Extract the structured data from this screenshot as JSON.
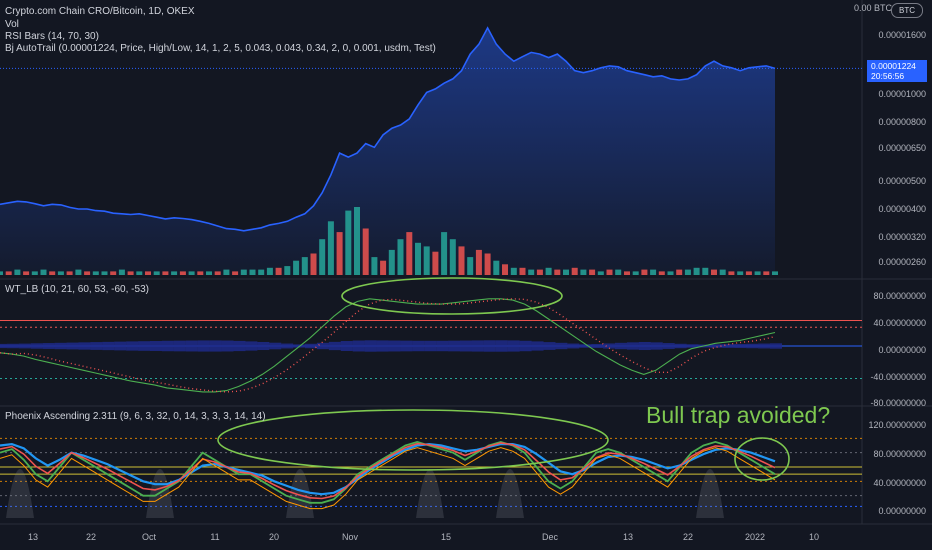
{
  "header": {
    "symbol_line": "Crypto.com Chain CRO/Bitcoin, 1D, OKEX",
    "vol_label": "Vol",
    "rsi_bars": "RSI Bars (14, 70, 30)",
    "autotrail": "Bj AutoTrail (0.00001224, Price, High/Low, 14, 1, 2, 5, 0.043, 0.043, 0.34, 2, 0, 0.001, usdm, Test)"
  },
  "wt_legend": "WT_LB (10, 21, 60, 53, -60, -53)",
  "phoenix_legend": "Phoenix Ascending 2.311 (9, 6, 3, 32, 0, 14, 3, 3, 3, 14, 14)",
  "annotation": "Bull trap avoided?",
  "currency_badge": "BTC",
  "price_tag": {
    "value": "0.00001224",
    "countdown": "20:56:56"
  },
  "price_axis": [
    "0.00 BTC",
    "0.00001600",
    "0.00001000",
    "0.00000800",
    "0.00000650",
    "0.00000500",
    "0.00000400",
    "0.00000320",
    "0.00000260"
  ],
  "wt_axis": [
    "80.00000000",
    "40.00000000",
    "0.00000000",
    "-40.00000000",
    "-80.00000000"
  ],
  "phoenix_axis": [
    "120.00000000",
    "80.00000000",
    "40.00000000",
    "0.00000000"
  ],
  "time_axis": [
    "13",
    "22",
    "Oct",
    "11",
    "20",
    "Nov",
    "15",
    "Dec",
    "13",
    "22",
    "2022",
    "10"
  ],
  "colors": {
    "background": "#131722",
    "price_line": "#2962ff",
    "volume_up": "#26a69a",
    "volume_down": "#ef5350",
    "annotation": "#7ec850"
  },
  "chart_data": [
    {
      "type": "area",
      "title": "Crypto.com Chain CRO/Bitcoin, 1D, OKEX",
      "scale": "log",
      "y_unit": "BTC",
      "last_price": 1.224e-05,
      "close": [
        3.9e-06,
        3.95e-06,
        4e-06,
        3.98e-06,
        3.92e-06,
        3.85e-06,
        3.9e-06,
        3.88e-06,
        3.8e-06,
        3.75e-06,
        3.75e-06,
        3.7e-06,
        3.68e-06,
        3.62e-06,
        3.6e-06,
        3.58e-06,
        3.6e-06,
        3.55e-06,
        3.5e-06,
        3.45e-06,
        3.48e-06,
        3.46e-06,
        3.43e-06,
        3.38e-06,
        3.32e-06,
        3.25e-06,
        3.18e-06,
        3.16e-06,
        3.12e-06,
        3.16e-06,
        3.2e-06,
        3.28e-06,
        3.32e-06,
        3.38e-06,
        3.5e-06,
        3.6e-06,
        3.85e-06,
        4.3e-06,
        5e-06,
        6e-06,
        5.8e-06,
        6e-06,
        6.5e-06,
        6.3e-06,
        7e-06,
        7.4e-06,
        7.6e-06,
        8e-06,
        9e-06,
        1e-05,
        1.03e-05,
        1.08e-05,
        1.12e-05,
        1.2e-05,
        1.38e-05,
        1.5e-05,
        1.72e-05,
        1.5e-05,
        1.38e-05,
        1.3e-05,
        1.35e-05,
        1.4e-05,
        1.38e-05,
        1.34e-05,
        1.38e-05,
        1.3e-05,
        1.2e-05,
        1.18e-05,
        1.2e-05,
        1.23e-05,
        1.25e-05,
        1.24e-05,
        1.2e-05,
        1.18e-05,
        1.16e-05,
        1.14e-05,
        1.15e-05,
        1.12e-05,
        1.11e-05,
        1.12e-05,
        1.16e-05,
        1.25e-05,
        1.3e-05,
        1.25e-05,
        1.23e-05,
        1.2e-05,
        1.23e-05,
        1.24e-05,
        1.25e-05,
        1.224e-05
      ],
      "volume": [
        2,
        2,
        3,
        2,
        2,
        3,
        2,
        2,
        2,
        3,
        2,
        2,
        2,
        2,
        3,
        2,
        2,
        2,
        2,
        2,
        2,
        2,
        2,
        2,
        2,
        2,
        3,
        2,
        3,
        3,
        3,
        4,
        4,
        5,
        8,
        10,
        12,
        20,
        30,
        24,
        36,
        38,
        26,
        10,
        8,
        14,
        20,
        24,
        18,
        16,
        13,
        24,
        20,
        16,
        10,
        14,
        12,
        8,
        6,
        4,
        4,
        3,
        3,
        4,
        3,
        3,
        4,
        3,
        3,
        2,
        3,
        3,
        2,
        2,
        3,
        3,
        2,
        2,
        3,
        3,
        4,
        4,
        3,
        3,
        2,
        2,
        2,
        2,
        2,
        2
      ],
      "volume_direction": [
        "up",
        "down",
        "up",
        "down",
        "up",
        "up",
        "down",
        "up",
        "down",
        "up",
        "down",
        "up",
        "up",
        "down",
        "up",
        "down",
        "up",
        "down",
        "up",
        "down",
        "up",
        "down",
        "up",
        "down",
        "up",
        "down",
        "up",
        "down",
        "up",
        "up",
        "up",
        "up",
        "down",
        "up",
        "up",
        "up",
        "down",
        "up",
        "up",
        "down",
        "up",
        "up",
        "down",
        "up",
        "down",
        "up",
        "up",
        "down",
        "up",
        "up",
        "down",
        "up",
        "up",
        "down",
        "up",
        "down",
        "down",
        "up",
        "down",
        "up",
        "down",
        "up",
        "down",
        "up",
        "down",
        "up",
        "down",
        "up",
        "down",
        "up",
        "down",
        "up",
        "down",
        "up",
        "down",
        "up",
        "down",
        "up",
        "down",
        "up",
        "up",
        "up",
        "down",
        "up",
        "down",
        "up",
        "down",
        "up",
        "down",
        "up"
      ]
    },
    {
      "type": "line",
      "title": "WT_LB (10, 21, 60, 53, -60, -53)",
      "ylim": [
        -80,
        80
      ],
      "overbought": [
        60,
        53
      ],
      "oversold": [
        -60,
        -53
      ],
      "wt1": [
        -10,
        -12,
        -15,
        -20,
        -24,
        -28,
        -32,
        -36,
        -40,
        -44,
        -48,
        -52,
        -55,
        -58,
        -62,
        -64,
        -66,
        -68,
        -68,
        -66,
        -60,
        -52,
        -42,
        -30,
        -16,
        -2,
        12,
        28,
        44,
        58,
        66,
        70,
        68,
        66,
        64,
        62,
        62,
        62,
        64,
        66,
        68,
        70,
        70,
        68,
        62,
        52,
        40,
        28,
        16,
        4,
        -8,
        -18,
        -28,
        -36,
        -42,
        -36,
        -24,
        -12,
        -4,
        0,
        4,
        6,
        8,
        12,
        16,
        20
      ]
    },
    {
      "type": "line",
      "title": "Phoenix Ascending 2.311 (9, 6, 3, 32, 0, 14, 3, 3, 3, 14, 14)",
      "ylim": [
        0,
        120
      ],
      "levels": [
        100,
        80,
        60,
        50,
        40,
        20
      ],
      "series": [
        {
          "values": [
            80,
            85,
            70,
            50,
            40,
            60,
            80,
            70,
            60,
            50,
            40,
            30,
            20,
            20,
            30,
            40,
            60,
            80,
            70,
            60,
            50,
            50,
            40,
            30,
            20,
            15,
            10,
            10,
            15,
            30,
            50,
            60,
            70,
            80,
            90,
            95,
            90,
            85,
            80,
            70,
            80,
            90,
            95,
            90,
            80,
            60,
            40,
            30,
            40,
            60,
            80,
            85,
            80,
            70,
            60,
            50,
            40,
            60,
            80,
            90,
            95,
            90,
            80,
            70,
            60,
            50
          ]
        },
        {
          "values": [
            90,
            92,
            86,
            72,
            62,
            70,
            80,
            76,
            70,
            64,
            56,
            48,
            40,
            36,
            36,
            42,
            52,
            62,
            64,
            60,
            56,
            52,
            48,
            40,
            34,
            28,
            24,
            22,
            24,
            32,
            44,
            56,
            66,
            76,
            84,
            90,
            92,
            90,
            86,
            82,
            84,
            88,
            92,
            92,
            88,
            78,
            66,
            54,
            50,
            56,
            66,
            74,
            76,
            74,
            70,
            64,
            58,
            62,
            70,
            78,
            84,
            86,
            84,
            80,
            74,
            68
          ]
        }
      ]
    }
  ]
}
